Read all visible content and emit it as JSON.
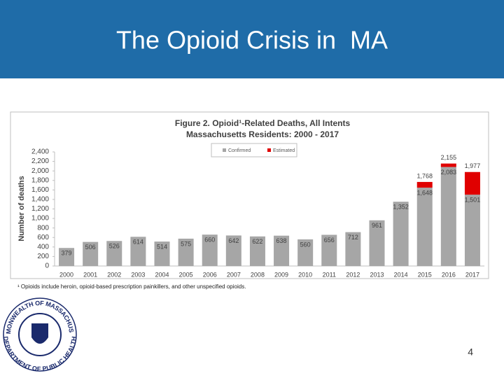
{
  "slide": {
    "title": "The Opioid Crisis in  MA",
    "page_number": "4",
    "footnote": "¹ Opioids include heroin, opioid-based prescription painkillers, and other unspecified opioids.",
    "logo": {
      "top": "COMMONWEALTH OF MASSACHUSETTS",
      "bottom": "DEPARTMENT OF PUBLIC HEALTH"
    }
  },
  "chart_data": {
    "type": "stacked_bar",
    "title": [
      "Figure 2. Opioid¹-Related Deaths, All Intents",
      "Massachusetts Residents: 2000 - 2017"
    ],
    "y_label": "Number of deaths",
    "categories": [
      "2000",
      "2001",
      "2002",
      "2003",
      "2004",
      "2005",
      "2006",
      "2007",
      "2008",
      "2009",
      "2010",
      "2011",
      "2012",
      "2013",
      "2014",
      "2015",
      "2016",
      "2017"
    ],
    "series": [
      {
        "name": "Confirmed",
        "color": "#a6a6a6",
        "values": [
          379,
          506,
          526,
          614,
          514,
          575,
          660,
          642,
          622,
          638,
          560,
          656,
          712,
          961,
          1352,
          1648,
          2083,
          1501
        ],
        "value_labels": [
          "379",
          "506",
          "526",
          "614",
          "514",
          "575",
          "660",
          "642",
          "622",
          "638",
          "560",
          "656",
          "712",
          "961",
          "1,352",
          "1,648",
          "2,083",
          "1,501"
        ]
      },
      {
        "name": "Estimated",
        "color": "#e00000",
        "values": [
          null,
          null,
          null,
          null,
          null,
          null,
          null,
          null,
          null,
          null,
          null,
          null,
          null,
          null,
          null,
          120,
          72,
          476
        ]
      }
    ],
    "totals": [
      null,
      null,
      null,
      null,
      null,
      null,
      null,
      null,
      null,
      null,
      null,
      null,
      null,
      null,
      null,
      1768,
      2155,
      1977
    ],
    "total_labels": [
      null,
      null,
      null,
      null,
      null,
      null,
      null,
      null,
      null,
      null,
      null,
      null,
      null,
      null,
      null,
      "1,768",
      "2,155",
      "1,977"
    ],
    "ylim": [
      0,
      2400
    ],
    "yticks": [
      0,
      200,
      400,
      600,
      800,
      {
        "value": 1000,
        "label": "1,000"
      },
      {
        "value": 1200,
        "label": "1,200"
      },
      {
        "value": 1400,
        "label": "1,400"
      },
      {
        "value": 1600,
        "label": "1,600"
      },
      {
        "value": 1800,
        "label": "1,800"
      },
      {
        "value": 2000,
        "label": "2,000"
      },
      {
        "value": 2200,
        "label": "2,200"
      },
      {
        "value": 2400,
        "label": "2,400"
      }
    ],
    "legend": "top",
    "grid": false
  }
}
